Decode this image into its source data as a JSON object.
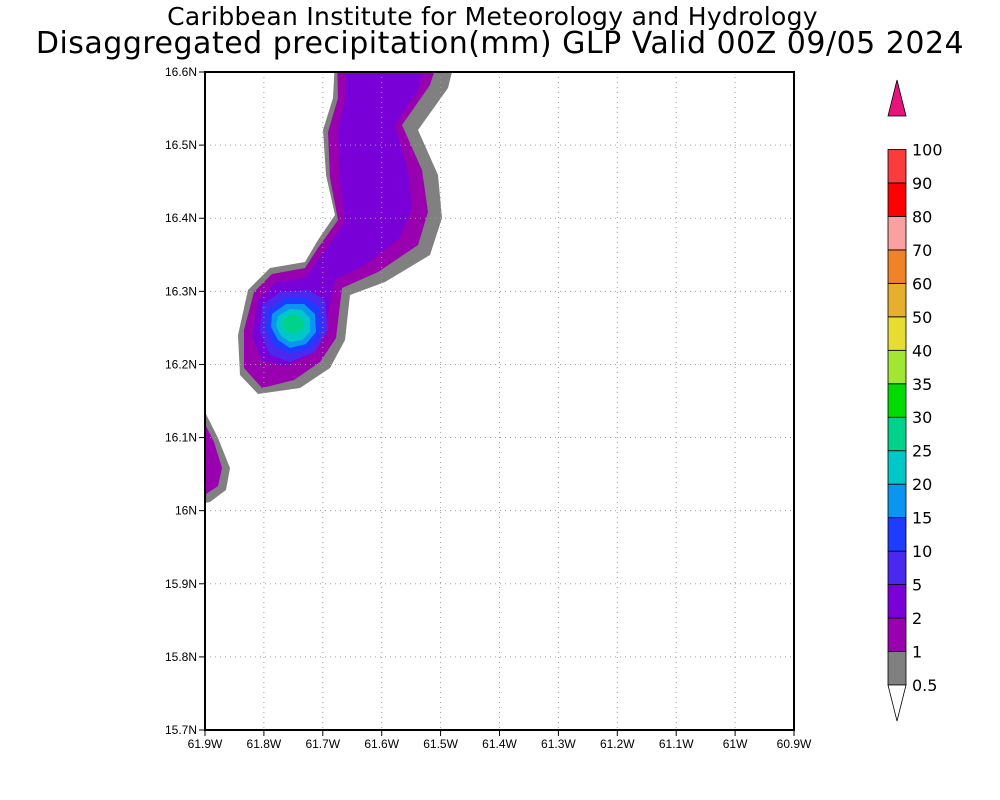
{
  "title": {
    "line1": "Caribbean Institute for Meteorology and Hydrology",
    "line2": "Disaggregated precipitation(mm) GLP Valid 00Z 09/05 2024"
  },
  "axes": {
    "x_ticks": [
      "61.9W",
      "61.8W",
      "61.7W",
      "61.6W",
      "61.5W",
      "61.4W",
      "61.3W",
      "61.2W",
      "61.1W",
      "61W",
      "60.9W"
    ],
    "y_ticks": [
      "16.6N",
      "16.5N",
      "16.4N",
      "16.3N",
      "16.2N",
      "16.1N",
      "16N",
      "15.9N",
      "15.8N",
      "15.7N"
    ],
    "lon_range": [
      -61.9,
      -60.9
    ],
    "lat_range": [
      15.7,
      16.6
    ],
    "grid": true
  },
  "colorbar": {
    "levels": [
      "0.5",
      "1",
      "2",
      "5",
      "10",
      "15",
      "20",
      "25",
      "30",
      "35",
      "40",
      "50",
      "60",
      "70",
      "80",
      "90",
      "100"
    ],
    "colors": [
      "#808080",
      "#9900b0",
      "#7a00d8",
      "#4b28f0",
      "#1e3cff",
      "#0a96f0",
      "#00c8c8",
      "#00d28c",
      "#00dc00",
      "#a0e632",
      "#e6dc32",
      "#e6af2d",
      "#f08228",
      "#faa0a0",
      "#ff0000",
      "#fa3c3c",
      "#e6147a"
    ]
  },
  "precip_cells": [
    {
      "name": "northern-band",
      "max_mm": 2
    },
    {
      "name": "central-cell",
      "max_mm": 20
    },
    {
      "name": "western-edge-cell",
      "max_mm": 2
    }
  ]
}
